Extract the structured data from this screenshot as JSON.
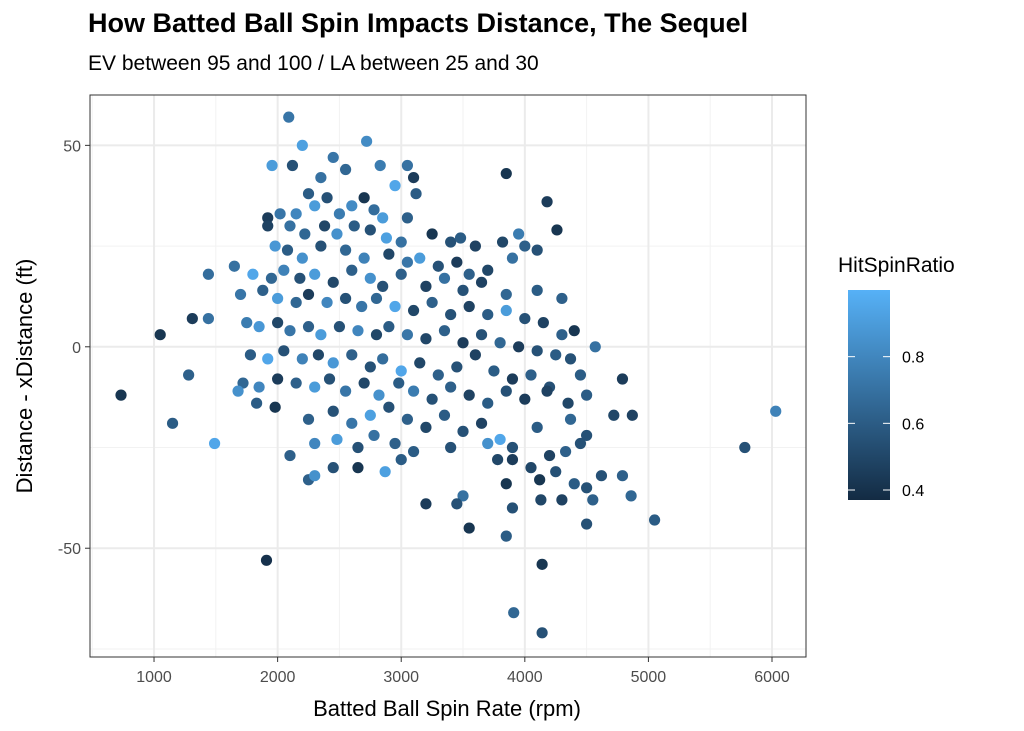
{
  "chart_data": {
    "type": "scatter",
    "title": "How Batted Ball Spin Impacts Distance, The Sequel",
    "subtitle": "EV between 95 and 100 / LA between 25 and 30",
    "xlabel": "Batted Ball Spin Rate (rpm)",
    "ylabel": "Distance - xDistance (ft)",
    "xlim": [
      482,
      6275
    ],
    "ylim": [
      -77,
      62.5
    ],
    "xticks": [
      1000,
      2000,
      3000,
      4000,
      5000,
      6000
    ],
    "yticks": [
      -50,
      0,
      50
    ],
    "grid": true,
    "legend": {
      "title": "HitSpinRatio",
      "placement": "right",
      "range": [
        0.37,
        1.0
      ],
      "ticks": [
        0.4,
        0.6,
        0.8
      ],
      "low_color": "#132B43",
      "high_color": "#56B1F7"
    },
    "points_format": [
      "spin_rate",
      "distance_diff",
      "hit_spin_ratio"
    ],
    "points": [
      [
        733,
        -12,
        0.42
      ],
      [
        1050,
        3,
        0.42
      ],
      [
        1150,
        -19,
        0.6
      ],
      [
        1280,
        -7,
        0.62
      ],
      [
        1310,
        7,
        0.45
      ],
      [
        1440,
        7,
        0.7
      ],
      [
        1440,
        18,
        0.68
      ],
      [
        1490,
        -24,
        0.95
      ],
      [
        1910,
        -53,
        0.4
      ],
      [
        6030,
        -16,
        0.78
      ],
      [
        5780,
        -25,
        0.55
      ],
      [
        5050,
        -43,
        0.6
      ],
      [
        4860,
        -37,
        0.65
      ],
      [
        4870,
        -17,
        0.48
      ],
      [
        4790,
        -32,
        0.62
      ],
      [
        4790,
        -8,
        0.45
      ],
      [
        4720,
        -17,
        0.5
      ],
      [
        4570,
        0,
        0.7
      ],
      [
        4140,
        -71,
        0.55
      ],
      [
        3910,
        -66,
        0.65
      ],
      [
        4140,
        -54,
        0.42
      ],
      [
        3850,
        43,
        0.42
      ],
      [
        4180,
        36,
        0.45
      ],
      [
        4260,
        29,
        0.42
      ],
      [
        2090,
        57,
        0.72
      ],
      [
        2200,
        50,
        0.92
      ],
      [
        2720,
        51,
        0.82
      ],
      [
        1955,
        45,
        0.9
      ],
      [
        2120,
        45,
        0.55
      ],
      [
        2350,
        42,
        0.7
      ],
      [
        2450,
        47,
        0.72
      ],
      [
        2550,
        44,
        0.65
      ],
      [
        2830,
        45,
        0.75
      ],
      [
        3050,
        45,
        0.7
      ],
      [
        3100,
        42,
        0.45
      ],
      [
        2950,
        40,
        0.95
      ],
      [
        3120,
        38,
        0.6
      ],
      [
        2700,
        37,
        0.42
      ],
      [
        2250,
        38,
        0.6
      ],
      [
        2400,
        37,
        0.55
      ],
      [
        1920,
        32,
        0.45
      ],
      [
        2020,
        33,
        0.72
      ],
      [
        2150,
        33,
        0.8
      ],
      [
        2300,
        35,
        0.9
      ],
      [
        2500,
        33,
        0.75
      ],
      [
        2600,
        35,
        0.82
      ],
      [
        2780,
        34,
        0.68
      ],
      [
        2850,
        32,
        0.9
      ],
      [
        3050,
        32,
        0.62
      ],
      [
        1920,
        30,
        0.48
      ],
      [
        2100,
        30,
        0.7
      ],
      [
        2220,
        28,
        0.65
      ],
      [
        2380,
        30,
        0.5
      ],
      [
        2480,
        28,
        0.85
      ],
      [
        2620,
        30,
        0.6
      ],
      [
        2750,
        29,
        0.55
      ],
      [
        2880,
        27,
        0.92
      ],
      [
        3000,
        26,
        0.7
      ],
      [
        3250,
        28,
        0.42
      ],
      [
        3400,
        26,
        0.55
      ],
      [
        3480,
        27,
        0.6
      ],
      [
        3600,
        25,
        0.48
      ],
      [
        3820,
        26,
        0.5
      ],
      [
        3950,
        28,
        0.75
      ],
      [
        4000,
        25,
        0.62
      ],
      [
        4100,
        24,
        0.55
      ],
      [
        1980,
        25,
        0.88
      ],
      [
        2080,
        24,
        0.6
      ],
      [
        2200,
        22,
        0.85
      ],
      [
        2350,
        25,
        0.55
      ],
      [
        2550,
        24,
        0.65
      ],
      [
        2700,
        22,
        0.78
      ],
      [
        2900,
        23,
        0.5
      ],
      [
        3050,
        21,
        0.72
      ],
      [
        3150,
        22,
        0.9
      ],
      [
        3300,
        20,
        0.55
      ],
      [
        3450,
        21,
        0.45
      ],
      [
        3550,
        18,
        0.62
      ],
      [
        3700,
        19,
        0.5
      ],
      [
        3900,
        22,
        0.7
      ],
      [
        1650,
        20,
        0.7
      ],
      [
        1800,
        18,
        0.95
      ],
      [
        1950,
        17,
        0.65
      ],
      [
        2050,
        19,
        0.78
      ],
      [
        2180,
        17,
        0.55
      ],
      [
        2300,
        18,
        0.9
      ],
      [
        2450,
        16,
        0.5
      ],
      [
        2600,
        19,
        0.62
      ],
      [
        2750,
        17,
        0.85
      ],
      [
        2850,
        15,
        0.55
      ],
      [
        3000,
        18,
        0.62
      ],
      [
        3200,
        15,
        0.48
      ],
      [
        3350,
        17,
        0.7
      ],
      [
        3500,
        14,
        0.55
      ],
      [
        3650,
        16,
        0.48
      ],
      [
        3850,
        13,
        0.65
      ],
      [
        4100,
        14,
        0.6
      ],
      [
        4300,
        12,
        0.62
      ],
      [
        1700,
        13,
        0.72
      ],
      [
        1880,
        14,
        0.62
      ],
      [
        2000,
        12,
        0.9
      ],
      [
        2150,
        11,
        0.65
      ],
      [
        2250,
        13,
        0.45
      ],
      [
        2400,
        11,
        0.8
      ],
      [
        2550,
        12,
        0.55
      ],
      [
        2680,
        10,
        0.72
      ],
      [
        2800,
        12,
        0.65
      ],
      [
        2950,
        10,
        0.95
      ],
      [
        3100,
        9,
        0.5
      ],
      [
        3250,
        11,
        0.62
      ],
      [
        3400,
        8,
        0.55
      ],
      [
        3550,
        10,
        0.48
      ],
      [
        3700,
        8,
        0.6
      ],
      [
        3850,
        9,
        0.9
      ],
      [
        4000,
        7,
        0.55
      ],
      [
        4150,
        6,
        0.48
      ],
      [
        4400,
        4,
        0.42
      ],
      [
        4300,
        3,
        0.62
      ],
      [
        1750,
        6,
        0.75
      ],
      [
        1850,
        5,
        0.88
      ],
      [
        2000,
        6,
        0.5
      ],
      [
        2100,
        4,
        0.72
      ],
      [
        2250,
        5,
        0.62
      ],
      [
        2350,
        3,
        0.9
      ],
      [
        2500,
        5,
        0.55
      ],
      [
        2650,
        4,
        0.8
      ],
      [
        2800,
        3,
        0.5
      ],
      [
        2900,
        5,
        0.6
      ],
      [
        3050,
        3,
        0.72
      ],
      [
        3200,
        2,
        0.5
      ],
      [
        3350,
        4,
        0.62
      ],
      [
        3500,
        1,
        0.45
      ],
      [
        3650,
        3,
        0.55
      ],
      [
        3800,
        1,
        0.65
      ],
      [
        3950,
        0,
        0.45
      ],
      [
        4100,
        -1,
        0.55
      ],
      [
        4250,
        -2,
        0.6
      ],
      [
        1780,
        -2,
        0.6
      ],
      [
        1920,
        -3,
        0.95
      ],
      [
        2050,
        -1,
        0.55
      ],
      [
        2200,
        -3,
        0.78
      ],
      [
        2330,
        -2,
        0.5
      ],
      [
        2450,
        -4,
        0.88
      ],
      [
        2600,
        -2,
        0.62
      ],
      [
        2750,
        -5,
        0.55
      ],
      [
        2850,
        -3,
        0.68
      ],
      [
        3000,
        -6,
        0.95
      ],
      [
        3150,
        -4,
        0.5
      ],
      [
        3300,
        -7,
        0.62
      ],
      [
        3450,
        -5,
        0.55
      ],
      [
        3600,
        -2,
        0.48
      ],
      [
        3750,
        -6,
        0.6
      ],
      [
        3900,
        -8,
        0.45
      ],
      [
        4050,
        -7,
        0.62
      ],
      [
        4200,
        -10,
        0.55
      ],
      [
        4450,
        -7,
        0.6
      ],
      [
        1720,
        -9,
        0.65
      ],
      [
        1850,
        -10,
        0.8
      ],
      [
        2000,
        -8,
        0.45
      ],
      [
        2150,
        -9,
        0.62
      ],
      [
        2300,
        -10,
        0.9
      ],
      [
        2420,
        -8,
        0.55
      ],
      [
        2550,
        -11,
        0.72
      ],
      [
        2700,
        -9,
        0.5
      ],
      [
        2820,
        -12,
        0.85
      ],
      [
        2980,
        -9,
        0.6
      ],
      [
        3100,
        -11,
        0.75
      ],
      [
        3250,
        -13,
        0.55
      ],
      [
        3400,
        -10,
        0.62
      ],
      [
        3550,
        -12,
        0.48
      ],
      [
        3700,
        -14,
        0.6
      ],
      [
        3850,
        -11,
        0.55
      ],
      [
        4000,
        -13,
        0.45
      ],
      [
        4350,
        -14,
        0.5
      ],
      [
        1680,
        -11,
        0.85
      ],
      [
        1830,
        -14,
        0.6
      ],
      [
        1980,
        -15,
        0.42
      ],
      [
        2250,
        -18,
        0.62
      ],
      [
        2450,
        -16,
        0.55
      ],
      [
        2600,
        -19,
        0.72
      ],
      [
        2750,
        -17,
        0.92
      ],
      [
        2900,
        -15,
        0.55
      ],
      [
        3050,
        -18,
        0.62
      ],
      [
        3200,
        -20,
        0.5
      ],
      [
        3350,
        -17,
        0.6
      ],
      [
        3500,
        -21,
        0.55
      ],
      [
        3650,
        -19,
        0.48
      ],
      [
        3800,
        -23,
        0.95
      ],
      [
        4100,
        -20,
        0.6
      ],
      [
        4370,
        -18,
        0.65
      ],
      [
        4500,
        -22,
        0.55
      ],
      [
        2100,
        -27,
        0.62
      ],
      [
        2300,
        -24,
        0.8
      ],
      [
        2480,
        -23,
        0.9
      ],
      [
        2650,
        -25,
        0.55
      ],
      [
        2780,
        -22,
        0.7
      ],
      [
        2950,
        -24,
        0.62
      ],
      [
        3100,
        -26,
        0.6
      ],
      [
        3400,
        -25,
        0.55
      ],
      [
        3700,
        -24,
        0.85
      ],
      [
        3900,
        -25,
        0.55
      ],
      [
        4200,
        -27,
        0.48
      ],
      [
        4330,
        -26,
        0.62
      ],
      [
        4450,
        -24,
        0.55
      ],
      [
        2250,
        -33,
        0.62
      ],
      [
        2300,
        -32,
        0.85
      ],
      [
        2450,
        -30,
        0.55
      ],
      [
        2650,
        -30,
        0.42
      ],
      [
        2870,
        -31,
        0.92
      ],
      [
        3000,
        -28,
        0.6
      ],
      [
        3500,
        -37,
        0.7
      ],
      [
        3450,
        -39,
        0.55
      ],
      [
        3200,
        -39,
        0.45
      ],
      [
        3550,
        -45,
        0.42
      ],
      [
        3850,
        -34,
        0.42
      ],
      [
        3900,
        -40,
        0.55
      ],
      [
        4130,
        -38,
        0.5
      ],
      [
        4300,
        -38,
        0.48
      ],
      [
        4500,
        -35,
        0.55
      ],
      [
        4550,
        -38,
        0.62
      ],
      [
        4500,
        -44,
        0.55
      ],
      [
        3850,
        -47,
        0.6
      ],
      [
        4050,
        -30,
        0.5
      ],
      [
        4250,
        -31,
        0.55
      ],
      [
        3900,
        -28,
        0.45
      ],
      [
        3780,
        -28,
        0.5
      ],
      [
        4120,
        -33,
        0.42
      ],
      [
        4400,
        -34,
        0.6
      ],
      [
        4620,
        -32,
        0.55
      ],
      [
        4180,
        -11,
        0.48
      ],
      [
        4370,
        -3,
        0.55
      ],
      [
        4500,
        -12,
        0.6
      ]
    ]
  }
}
